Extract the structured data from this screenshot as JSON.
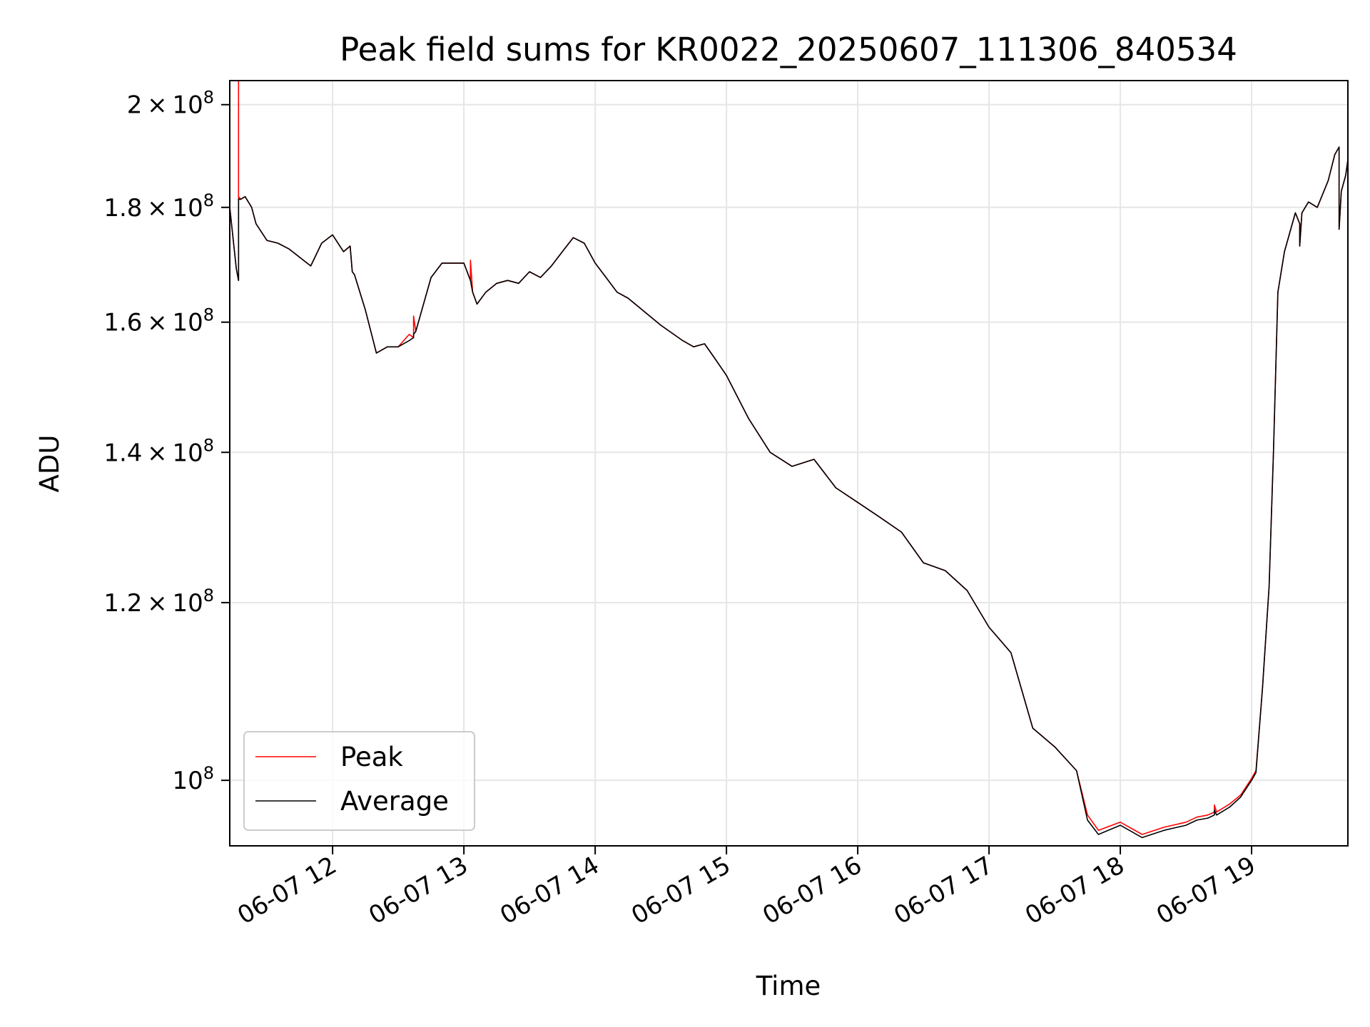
{
  "chart_data": {
    "type": "line",
    "title": "Peak field sums for KR0022_20250607_111306_840534",
    "xlabel": "Time",
    "ylabel": "ADU",
    "yscale": "log",
    "ylim": [
      93500000,
      205000000
    ],
    "xlim": [
      "2025-06-07 11:13",
      "2025-06-07 19:44"
    ],
    "x_ticks": [
      {
        "value": "2025-06-07 12:00",
        "label": "06-07 12"
      },
      {
        "value": "2025-06-07 13:00",
        "label": "06-07 13"
      },
      {
        "value": "2025-06-07 14:00",
        "label": "06-07 14"
      },
      {
        "value": "2025-06-07 15:00",
        "label": "06-07 15"
      },
      {
        "value": "2025-06-07 16:00",
        "label": "06-07 16"
      },
      {
        "value": "2025-06-07 17:00",
        "label": "06-07 17"
      },
      {
        "value": "2025-06-07 18:00",
        "label": "06-07 18"
      },
      {
        "value": "2025-06-07 19:00",
        "label": "06-07 19"
      }
    ],
    "y_ticks": [
      {
        "value": 100000000,
        "mantissa": "",
        "exponent": "8"
      },
      {
        "value": 120000000,
        "mantissa": "1.2",
        "exponent": "8"
      },
      {
        "value": 140000000,
        "mantissa": "1.4",
        "exponent": "8"
      },
      {
        "value": 160000000,
        "mantissa": "1.6",
        "exponent": "8"
      },
      {
        "value": 180000000,
        "mantissa": "1.8",
        "exponent": "8"
      },
      {
        "value": 200000000,
        "mantissa": "2",
        "exponent": "8"
      }
    ],
    "grid": true,
    "legend_position": "lower-left",
    "series": [
      {
        "name": "Peak",
        "color": "#ff0000",
        "x": [
          "2025-06-07 11:13",
          "2025-06-07 11:16",
          "2025-06-07 11:17",
          "2025-06-07 11:17",
          "2025-06-07 11:17",
          "2025-06-07 11:18",
          "2025-06-07 11:20",
          "2025-06-07 11:23",
          "2025-06-07 11:25",
          "2025-06-07 11:30",
          "2025-06-07 11:35",
          "2025-06-07 11:40",
          "2025-06-07 11:45",
          "2025-06-07 11:50",
          "2025-06-07 11:55",
          "2025-06-07 12:00",
          "2025-06-07 12:05",
          "2025-06-07 12:08",
          "2025-06-07 12:09",
          "2025-06-07 12:10",
          "2025-06-07 12:15",
          "2025-06-07 12:20",
          "2025-06-07 12:25",
          "2025-06-07 12:30",
          "2025-06-07 12:35",
          "2025-06-07 12:37",
          "2025-06-07 12:37",
          "2025-06-07 12:38",
          "2025-06-07 12:40",
          "2025-06-07 12:45",
          "2025-06-07 12:50",
          "2025-06-07 13:00",
          "2025-06-07 13:03",
          "2025-06-07 13:03",
          "2025-06-07 13:04",
          "2025-06-07 13:06",
          "2025-06-07 13:10",
          "2025-06-07 13:15",
          "2025-06-07 13:20",
          "2025-06-07 13:25",
          "2025-06-07 13:30",
          "2025-06-07 13:35",
          "2025-06-07 13:40",
          "2025-06-07 13:45",
          "2025-06-07 13:50",
          "2025-06-07 13:55",
          "2025-06-07 14:00",
          "2025-06-07 14:05",
          "2025-06-07 14:10",
          "2025-06-07 14:15",
          "2025-06-07 14:20",
          "2025-06-07 14:30",
          "2025-06-07 14:40",
          "2025-06-07 14:45",
          "2025-06-07 14:50",
          "2025-06-07 14:55",
          "2025-06-07 15:00",
          "2025-06-07 15:10",
          "2025-06-07 15:20",
          "2025-06-07 15:30",
          "2025-06-07 15:40",
          "2025-06-07 15:50",
          "2025-06-07 16:00",
          "2025-06-07 16:10",
          "2025-06-07 16:20",
          "2025-06-07 16:30",
          "2025-06-07 16:40",
          "2025-06-07 16:50",
          "2025-06-07 17:00",
          "2025-06-07 17:10",
          "2025-06-07 17:20",
          "2025-06-07 17:30",
          "2025-06-07 17:40",
          "2025-06-07 17:45",
          "2025-06-07 17:50",
          "2025-06-07 18:00",
          "2025-06-07 18:10",
          "2025-06-07 18:20",
          "2025-06-07 18:30",
          "2025-06-07 18:35",
          "2025-06-07 18:40",
          "2025-06-07 18:43",
          "2025-06-07 18:43",
          "2025-06-07 18:44",
          "2025-06-07 18:50",
          "2025-06-07 18:55",
          "2025-06-07 19:00",
          "2025-06-07 19:02",
          "2025-06-07 19:05",
          "2025-06-07 19:08",
          "2025-06-07 19:10",
          "2025-06-07 19:12",
          "2025-06-07 19:15",
          "2025-06-07 19:20",
          "2025-06-07 19:22",
          "2025-06-07 19:22",
          "2025-06-07 19:23",
          "2025-06-07 19:26",
          "2025-06-07 19:30",
          "2025-06-07 19:35",
          "2025-06-07 19:38",
          "2025-06-07 19:40",
          "2025-06-07 19:40",
          "2025-06-07 19:41",
          "2025-06-07 19:43",
          "2025-06-07 19:44"
        ],
        "y": [
          180000000,
          169000000,
          167000000,
          205000000,
          182000000,
          181500000,
          182000000,
          180000000,
          177000000,
          174000000,
          173500000,
          172500000,
          171000000,
          169500000,
          173500000,
          175000000,
          172000000,
          173000000,
          168500000,
          168000000,
          162000000,
          155000000,
          156000000,
          156000000,
          158000000,
          157500000,
          161000000,
          158500000,
          161000000,
          167500000,
          170000000,
          170000000,
          167000000,
          170500000,
          165000000,
          163000000,
          165000000,
          166500000,
          167000000,
          166500000,
          168500000,
          167500000,
          169500000,
          172000000,
          174500000,
          173500000,
          170000000,
          167500000,
          165000000,
          164000000,
          162500000,
          159500000,
          157000000,
          156000000,
          156500000,
          154000000,
          151500000,
          145000000,
          140000000,
          138000000,
          139000000,
          135000000,
          133000000,
          131000000,
          129000000,
          125000000,
          124000000,
          121500000,
          117000000,
          114000000,
          105500000,
          103500000,
          101000000,
          96500000,
          95000000,
          95800000,
          94600000,
          95300000,
          95800000,
          96300000,
          96500000,
          96800000,
          97500000,
          96800000,
          97600000,
          98500000,
          100200000,
          101000000,
          110000000,
          122000000,
          140000000,
          165000000,
          172000000,
          179000000,
          177000000,
          173000000,
          179000000,
          181000000,
          180000000,
          185000000,
          190000000,
          191500000,
          176000000,
          183000000,
          186000000,
          189000000
        ]
      },
      {
        "name": "Average",
        "color": "#000000",
        "x": [
          "2025-06-07 11:13",
          "2025-06-07 11:16",
          "2025-06-07 11:17",
          "2025-06-07 11:17",
          "2025-06-07 11:17",
          "2025-06-07 11:18",
          "2025-06-07 11:20",
          "2025-06-07 11:23",
          "2025-06-07 11:25",
          "2025-06-07 11:30",
          "2025-06-07 11:35",
          "2025-06-07 11:40",
          "2025-06-07 11:45",
          "2025-06-07 11:50",
          "2025-06-07 11:55",
          "2025-06-07 12:00",
          "2025-06-07 12:05",
          "2025-06-07 12:08",
          "2025-06-07 12:09",
          "2025-06-07 12:10",
          "2025-06-07 12:15",
          "2025-06-07 12:20",
          "2025-06-07 12:25",
          "2025-06-07 12:30",
          "2025-06-07 12:35",
          "2025-06-07 12:37",
          "2025-06-07 12:37",
          "2025-06-07 12:38",
          "2025-06-07 12:40",
          "2025-06-07 12:45",
          "2025-06-07 12:50",
          "2025-06-07 13:00",
          "2025-06-07 13:03",
          "2025-06-07 13:03",
          "2025-06-07 13:04",
          "2025-06-07 13:06",
          "2025-06-07 13:10",
          "2025-06-07 13:15",
          "2025-06-07 13:20",
          "2025-06-07 13:25",
          "2025-06-07 13:30",
          "2025-06-07 13:35",
          "2025-06-07 13:40",
          "2025-06-07 13:45",
          "2025-06-07 13:50",
          "2025-06-07 13:55",
          "2025-06-07 14:00",
          "2025-06-07 14:05",
          "2025-06-07 14:10",
          "2025-06-07 14:15",
          "2025-06-07 14:20",
          "2025-06-07 14:30",
          "2025-06-07 14:40",
          "2025-06-07 14:45",
          "2025-06-07 14:50",
          "2025-06-07 14:55",
          "2025-06-07 15:00",
          "2025-06-07 15:10",
          "2025-06-07 15:20",
          "2025-06-07 15:30",
          "2025-06-07 15:40",
          "2025-06-07 15:50",
          "2025-06-07 16:00",
          "2025-06-07 16:10",
          "2025-06-07 16:20",
          "2025-06-07 16:30",
          "2025-06-07 16:40",
          "2025-06-07 16:50",
          "2025-06-07 17:00",
          "2025-06-07 17:10",
          "2025-06-07 17:20",
          "2025-06-07 17:30",
          "2025-06-07 17:40",
          "2025-06-07 17:45",
          "2025-06-07 17:50",
          "2025-06-07 18:00",
          "2025-06-07 18:10",
          "2025-06-07 18:20",
          "2025-06-07 18:30",
          "2025-06-07 18:35",
          "2025-06-07 18:40",
          "2025-06-07 18:43",
          "2025-06-07 18:43",
          "2025-06-07 18:44",
          "2025-06-07 18:50",
          "2025-06-07 18:55",
          "2025-06-07 19:00",
          "2025-06-07 19:02",
          "2025-06-07 19:05",
          "2025-06-07 19:08",
          "2025-06-07 19:10",
          "2025-06-07 19:12",
          "2025-06-07 19:15",
          "2025-06-07 19:20",
          "2025-06-07 19:22",
          "2025-06-07 19:22",
          "2025-06-07 19:23",
          "2025-06-07 19:26",
          "2025-06-07 19:30",
          "2025-06-07 19:35",
          "2025-06-07 19:38",
          "2025-06-07 19:40",
          "2025-06-07 19:40",
          "2025-06-07 19:41",
          "2025-06-07 19:43",
          "2025-06-07 19:44"
        ],
        "y": [
          180000000,
          169000000,
          167000000,
          181000000,
          181500000,
          181500000,
          182000000,
          180000000,
          177000000,
          174000000,
          173500000,
          172500000,
          171000000,
          169500000,
          173500000,
          175000000,
          172000000,
          173000000,
          168500000,
          168000000,
          162000000,
          155000000,
          156000000,
          156000000,
          157000000,
          157500000,
          158000000,
          158500000,
          161000000,
          167500000,
          170000000,
          170000000,
          167000000,
          167000000,
          165000000,
          163000000,
          165000000,
          166500000,
          167000000,
          166500000,
          168500000,
          167500000,
          169500000,
          172000000,
          174500000,
          173500000,
          170000000,
          167500000,
          165000000,
          164000000,
          162500000,
          159500000,
          157000000,
          156000000,
          156500000,
          154000000,
          151500000,
          145000000,
          140000000,
          138000000,
          139000000,
          135000000,
          133000000,
          131000000,
          129000000,
          125000000,
          124000000,
          121500000,
          117000000,
          114000000,
          105500000,
          103500000,
          101000000,
          96000000,
          94600000,
          95500000,
          94300000,
          95000000,
          95500000,
          96000000,
          96200000,
          96500000,
          97000000,
          96500000,
          97300000,
          98300000,
          100000000,
          100800000,
          110000000,
          122000000,
          140000000,
          165000000,
          172000000,
          179000000,
          177000000,
          173000000,
          179000000,
          181000000,
          180000000,
          185000000,
          190000000,
          191500000,
          176000000,
          183000000,
          186000000,
          189000000
        ]
      }
    ]
  }
}
